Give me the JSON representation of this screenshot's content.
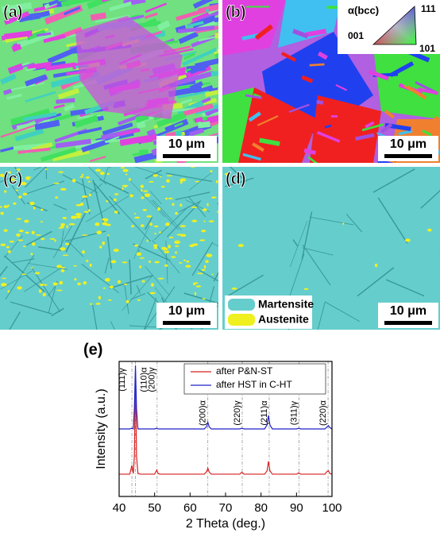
{
  "panels": [
    {
      "label": "(a)",
      "scale_bar": "10 μm"
    },
    {
      "label": "(b)",
      "scale_bar": "10 μm"
    },
    {
      "label": "(c)",
      "scale_bar": "10 μm"
    },
    {
      "label": "(d)",
      "scale_bar": "10 μm"
    }
  ],
  "ipf_key": {
    "title": "α(bcc)",
    "corners": [
      "111",
      "001",
      "101"
    ]
  },
  "phase_legend": [
    "Martensite",
    "Austenite"
  ],
  "chart_data": {
    "type": "line",
    "panel_label": "(e)",
    "x_label": "2 Theta (deg.)",
    "y_label": "Intensity (a.u.)",
    "x": [
      40,
      43,
      43.6,
      44,
      44.3,
      44.6,
      44.9,
      45.3,
      46,
      50,
      50.6,
      51,
      51.5,
      64,
      64.7,
      65,
      65.4,
      66,
      74,
      74.6,
      75.2,
      81,
      81.7,
      82.1,
      82.5,
      83.2,
      90,
      90.6,
      91.2,
      98,
      98.6,
      99,
      99.4,
      100
    ],
    "series": [
      {
        "name": "after P&N-ST",
        "color": "#d62020",
        "values": [
          1.65,
          1.65,
          2.3,
          1.7,
          3,
          9.2,
          3,
          1.7,
          1.65,
          1.65,
          1.95,
          1.7,
          1.65,
          1.65,
          1.85,
          2.1,
          1.8,
          1.65,
          1.65,
          1.8,
          1.65,
          1.65,
          1.9,
          2.6,
          1.9,
          1.65,
          1.65,
          1.75,
          1.65,
          1.65,
          1.85,
          1.9,
          1.7,
          1.65
        ]
      },
      {
        "name": "after HST in C-HT",
        "color": "#2020c8",
        "values": [
          5,
          5,
          5.05,
          5,
          6.5,
          9.7,
          6.5,
          5,
          5,
          5,
          5.05,
          5,
          5,
          5,
          5.2,
          5.5,
          5.15,
          5,
          5,
          5.05,
          5,
          5,
          5.3,
          6,
          5.3,
          5,
          5,
          5.05,
          5,
          5,
          5.15,
          5.25,
          5.1,
          5
        ]
      }
    ],
    "annotations": [
      {
        "text": "(111)γ",
        "x": 43.6
      },
      {
        "text": "(110)α",
        "x": 44.6
      },
      {
        "text": "(200)γ",
        "x": 50.7
      },
      {
        "text": "(200)α",
        "x": 65
      },
      {
        "text": "(220)γ",
        "x": 74.7
      },
      {
        "text": "(211)α",
        "x": 82.3
      },
      {
        "text": "(311)γ",
        "x": 90.7
      },
      {
        "text": "(220)α",
        "x": 98.9
      }
    ],
    "xlim": [
      40,
      100
    ],
    "ylim": [
      0,
      10
    ],
    "xticks": [
      40,
      50,
      60,
      70,
      80,
      90,
      100
    ]
  }
}
